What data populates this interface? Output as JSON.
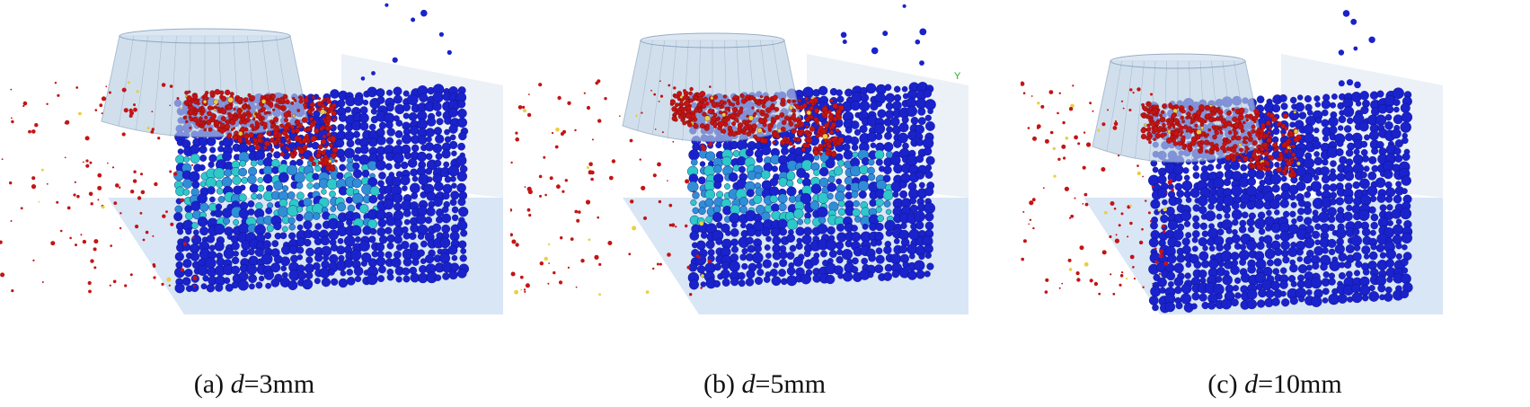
{
  "figure": {
    "panels": [
      {
        "id": "a",
        "caption_prefix": "(a) ",
        "caption_variable": "d",
        "caption_suffix": "=3mm",
        "axis_label": ""
      },
      {
        "id": "b",
        "caption_prefix": "(b) ",
        "caption_variable": "d",
        "caption_suffix": "=5mm",
        "axis_label": "Y"
      },
      {
        "id": "c",
        "caption_prefix": "(c) ",
        "caption_variable": "d",
        "caption_suffix": "=10mm",
        "axis_label": ""
      }
    ],
    "colors": {
      "matrix_particles": "#1a22cc",
      "stressed_particles": "#2ec8c8",
      "chip_particles": "#c41414",
      "debris_yellow": "#e8d040",
      "tool_fill": "#b9cfe3",
      "ground_plane": "#cfe0f2"
    },
    "icons": {
      "tool": "cutting-tool-cone",
      "workpiece": "particle-workpiece-block"
    }
  }
}
